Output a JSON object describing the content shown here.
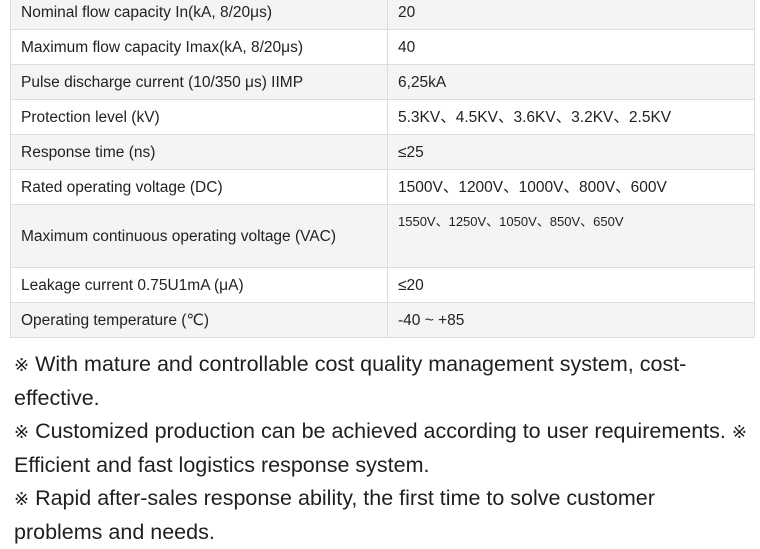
{
  "spec_table": {
    "rows": [
      {
        "label": "Nominal flow capacity In(kA, 8/20μs)",
        "value": "20"
      },
      {
        "label": "Maximum flow capacity Imax(kA, 8/20μs)",
        "value": "40"
      },
      {
        "label": "Pulse discharge current (10/350 μs) IIMP",
        "value": "6,25kA"
      },
      {
        "label": "Protection level (kV)",
        "value": "5.3KV、4.5KV、3.6KV、3.2KV、2.5KV"
      },
      {
        "label": "Response time (ns)",
        "value": "≤25"
      },
      {
        "label": "Rated operating voltage (DC)",
        "value": "1500V、1200V、1000V、800V、600V"
      },
      {
        "label": "Maximum continuous operating voltage (VAC)",
        "value": "1550V、1250V、1050V、850V、650V"
      },
      {
        "label": "Leakage current 0.75U1mA (μA)",
        "value": "≤20"
      },
      {
        "label": "Operating temperature (℃)",
        "value": "-40 ~ +85"
      }
    ]
  },
  "notes": {
    "mark": "※",
    "line1": "With mature and controllable cost quality management system, cost-effective.",
    "line2a": "Customized production can be achieved according to user requirements.",
    "line2b": "Efficient and fast logistics response system.",
    "line3": "Rapid after-sales response ability, the first time to solve customer problems and needs."
  }
}
